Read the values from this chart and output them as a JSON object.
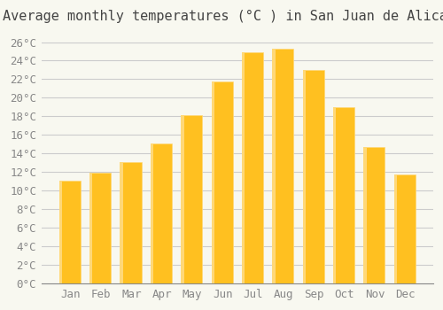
{
  "title": "Average monthly temperatures (°C ) in San Juan de Alicante",
  "months": [
    "Jan",
    "Feb",
    "Mar",
    "Apr",
    "May",
    "Jun",
    "Jul",
    "Aug",
    "Sep",
    "Oct",
    "Nov",
    "Dec"
  ],
  "values": [
    11.1,
    11.9,
    13.1,
    15.1,
    18.1,
    21.8,
    24.9,
    25.3,
    23.0,
    19.0,
    14.7,
    11.8
  ],
  "bar_color_top": "#FFC020",
  "bar_color_bottom": "#FFD878",
  "background_color": "#F8F8F0",
  "grid_color": "#CCCCCC",
  "yticks": [
    0,
    2,
    4,
    6,
    8,
    10,
    12,
    14,
    16,
    18,
    20,
    22,
    24,
    26
  ],
  "ylim": [
    0,
    27
  ],
  "title_fontsize": 11,
  "tick_fontsize": 9,
  "font_family": "monospace"
}
